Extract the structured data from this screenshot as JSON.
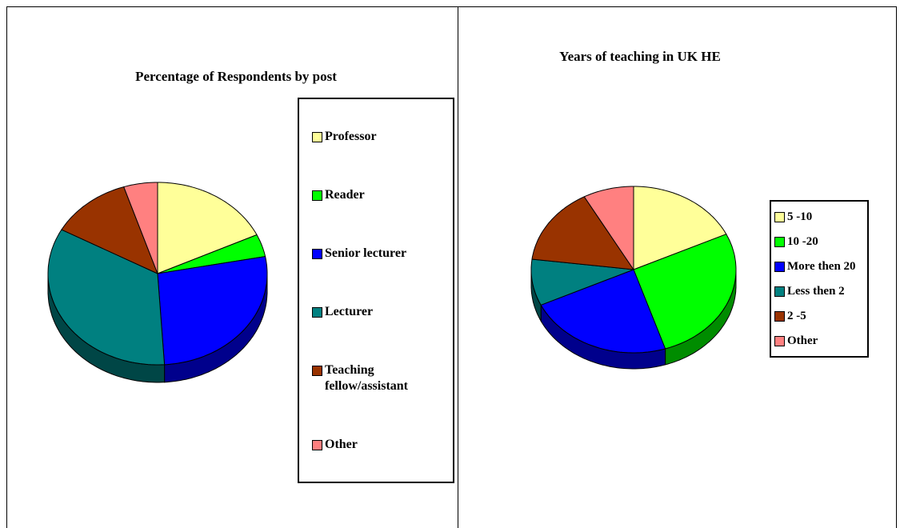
{
  "chart_data": [
    {
      "type": "pie",
      "title": "Percentage of Respondents  by post",
      "categories": [
        "Professor",
        "Reader",
        "Senior lecturer",
        "Lecturer",
        "Teaching fellow/assistant",
        "Other"
      ],
      "values": [
        18,
        4,
        27,
        34,
        12,
        5
      ],
      "colors": [
        "#ffff99",
        "#00ff00",
        "#0000ff",
        "#008080",
        "#993300",
        "#ff8080"
      ],
      "legend": "right"
    },
    {
      "type": "pie",
      "title": "Years of teaching in UK HE",
      "categories": [
        "5 -10",
        "10 -20",
        "More then 20",
        "Less then 2",
        "2 -5",
        "Other"
      ],
      "values": [
        18,
        27,
        23,
        9,
        15,
        8
      ],
      "colors": [
        "#ffff99",
        "#00ff00",
        "#0000ff",
        "#008080",
        "#993300",
        "#ff8080"
      ],
      "legend": "right"
    }
  ]
}
